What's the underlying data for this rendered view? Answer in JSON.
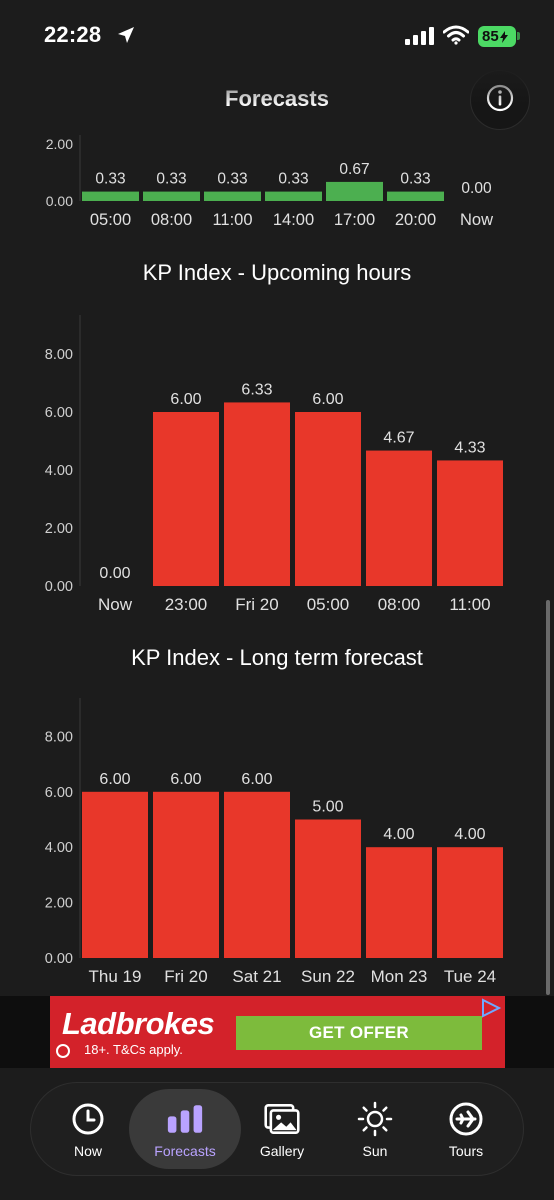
{
  "status_bar": {
    "time": "22:28",
    "battery": "85",
    "location_icon": "location-arrow-icon",
    "signal_icon": "cellular-signal-icon",
    "wifi_icon": "wifi-icon"
  },
  "header": {
    "title": "Forecasts",
    "info_icon": "info-icon"
  },
  "colors": {
    "background": "#1c1c1c",
    "bar_green": "#4caf50",
    "bar_red": "#e8372a",
    "text_light": "#d0d0d0",
    "tab_active": "#b9a3ff"
  },
  "chart_data": [
    {
      "type": "bar",
      "title": "",
      "categories": [
        "05:00",
        "08:00",
        "11:00",
        "14:00",
        "17:00",
        "20:00",
        "Now"
      ],
      "values": [
        0.33,
        0.33,
        0.33,
        0.33,
        0.67,
        0.33,
        0.0
      ],
      "value_labels": [
        "0.33",
        "0.33",
        "0.33",
        "0.33",
        "0.67",
        "0.33",
        "0.00"
      ],
      "y_ticks": [
        "0.00",
        "2.00"
      ],
      "ylim": [
        0,
        2.2
      ],
      "color": "#4caf50"
    },
    {
      "type": "bar",
      "title": "KP Index - Upcoming hours",
      "categories": [
        "Now",
        "23:00",
        "Fri 20",
        "05:00",
        "08:00",
        "11:00"
      ],
      "values": [
        0.0,
        6.0,
        6.33,
        6.0,
        4.67,
        4.33
      ],
      "value_labels": [
        "0.00",
        "6.00",
        "6.33",
        "6.00",
        "4.67",
        "4.33"
      ],
      "y_ticks": [
        "0.00",
        "2.00",
        "4.00",
        "6.00",
        "8.00"
      ],
      "ylim": [
        0,
        9.3
      ],
      "color": "#e8372a"
    },
    {
      "type": "bar",
      "title": "KP Index - Long term forecast",
      "categories": [
        "Thu 19",
        "Fri 20",
        "Sat 21",
        "Sun 22",
        "Mon 23",
        "Tue 24"
      ],
      "values": [
        6.0,
        6.0,
        6.0,
        5.0,
        4.0,
        4.0
      ],
      "value_labels": [
        "6.00",
        "6.00",
        "6.00",
        "5.00",
        "4.00",
        "4.00"
      ],
      "y_ticks": [
        "0.00",
        "2.00",
        "4.00",
        "6.00",
        "8.00"
      ],
      "ylim": [
        0,
        9.3
      ],
      "color": "#e8372a"
    }
  ],
  "ad": {
    "brand": "Ladbrokes",
    "terms": "18+. T&Cs apply.",
    "cta": "GET OFFER"
  },
  "tabs": [
    {
      "label": "Now",
      "icon": "clock-icon",
      "active": false
    },
    {
      "label": "Forecasts",
      "icon": "bar-chart-icon",
      "active": true
    },
    {
      "label": "Gallery",
      "icon": "gallery-icon",
      "active": false
    },
    {
      "label": "Sun",
      "icon": "sun-icon",
      "active": false
    },
    {
      "label": "Tours",
      "icon": "airplane-icon",
      "active": false
    }
  ]
}
